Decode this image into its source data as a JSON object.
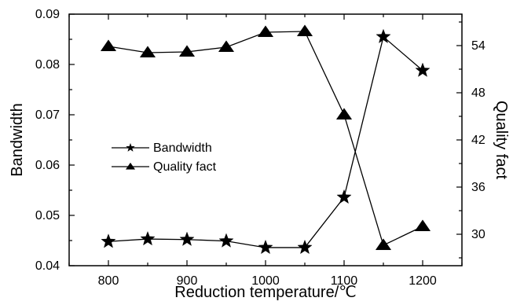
{
  "chart_data": {
    "type": "line",
    "title": "",
    "xlabel": "Reduction temperature/℃",
    "ylabel": "Bandwidth",
    "y2label": "Quality fact",
    "xlim": [
      750,
      1250
    ],
    "ylim": [
      0.04,
      0.09
    ],
    "y2lim": [
      26,
      58
    ],
    "x": [
      800,
      850,
      900,
      950,
      1000,
      1050,
      1100,
      1150,
      1200
    ],
    "x_ticks": [
      "800",
      "900",
      "1000",
      "1100",
      "1200"
    ],
    "y_ticks": [
      "0.04",
      "0.05",
      "0.06",
      "0.07",
      "0.08",
      "0.09"
    ],
    "y2_ticks": [
      "30",
      "36",
      "42",
      "48",
      "54"
    ],
    "grid": false,
    "legend_position": "center-left",
    "series": [
      {
        "name": "Bandwidth",
        "axis": "left",
        "marker": "star",
        "values": [
          0.0448,
          0.0453,
          0.0452,
          0.0449,
          0.0436,
          0.0436,
          0.0536,
          0.0855,
          0.0788
        ]
      },
      {
        "name": "Quality fact",
        "axis": "right",
        "marker": "triangle",
        "values": [
          53.9,
          53.1,
          53.2,
          53.8,
          55.7,
          55.8,
          45.2,
          28.6,
          31.0
        ]
      }
    ],
    "colors": {
      "line": "#000000",
      "marker": "#000000",
      "background": "#ffffff"
    }
  }
}
